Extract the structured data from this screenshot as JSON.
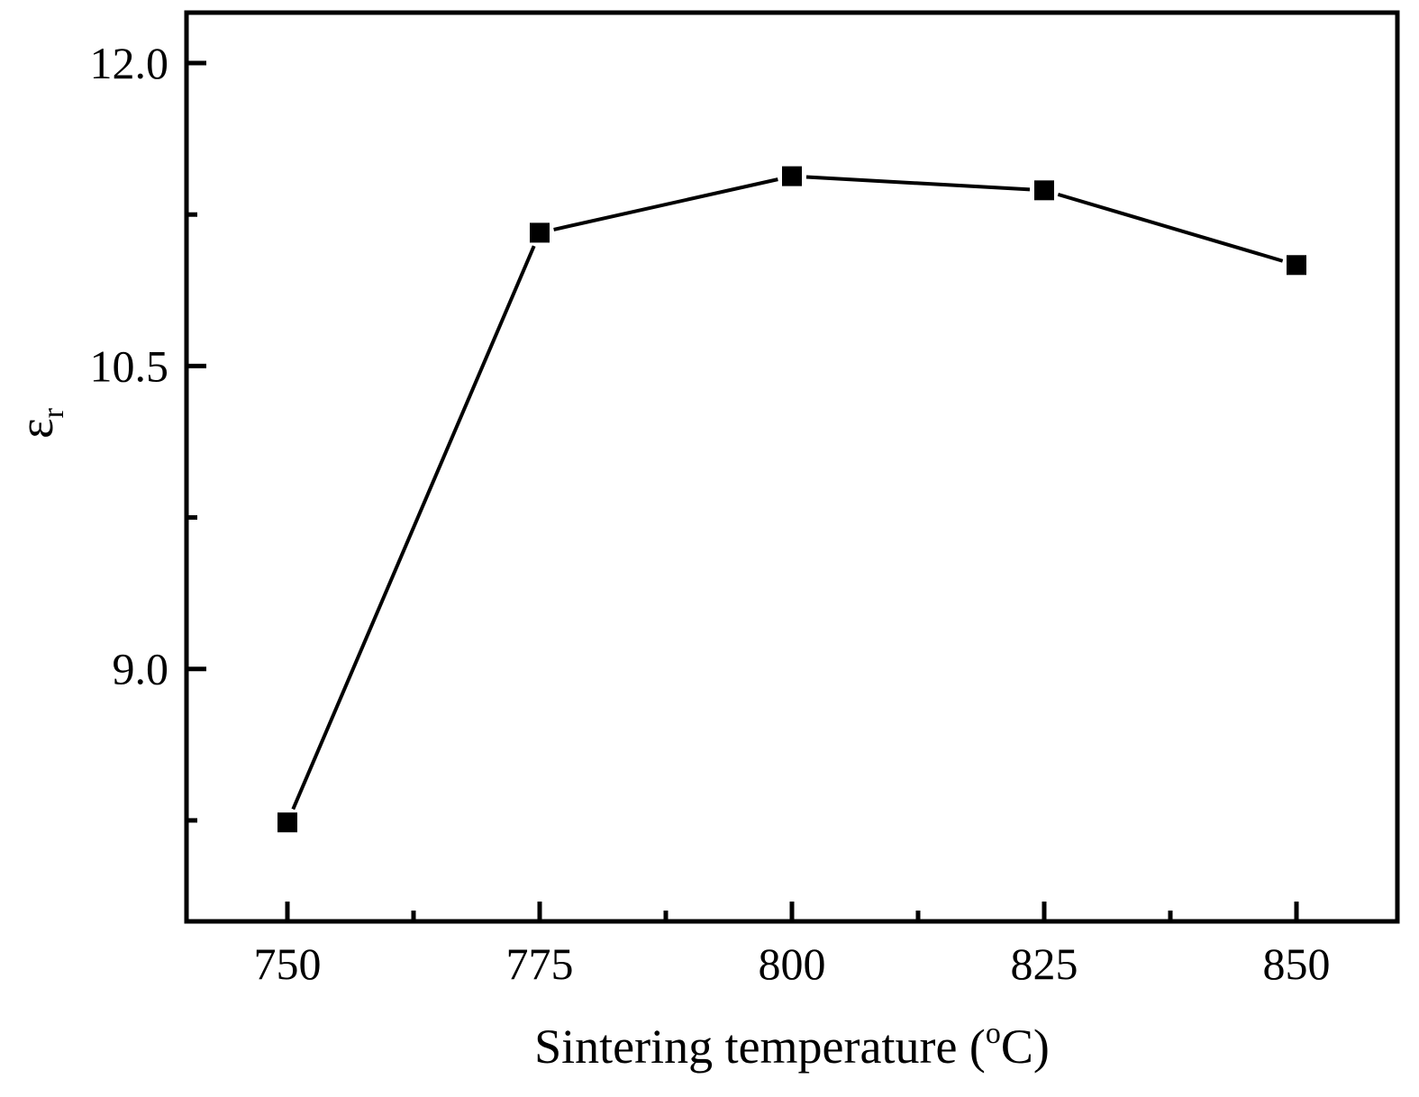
{
  "chart_data": {
    "type": "line",
    "title": "",
    "xlabel": "Sintering temperature (",
    "xlabel_sup": "o",
    "xlabel_end": "C)",
    "ylabel": "ε",
    "ylabel_sub": "r",
    "x": [
      750,
      775,
      800,
      825,
      850
    ],
    "series": [
      {
        "name": "εr",
        "values": [
          8.24,
          11.16,
          11.44,
          11.37,
          11.0
        ],
        "marker": "square",
        "color": "#000000"
      }
    ],
    "xlim": [
      740,
      860
    ],
    "ylim": [
      7.75,
      12.25
    ],
    "xticks": [
      750,
      775,
      800,
      825,
      850
    ],
    "xtick_labels": [
      "750",
      "775",
      "800",
      "825",
      "850"
    ],
    "xminor": [
      762.5,
      787.5,
      812.5,
      837.5
    ],
    "yticks": [
      9.0,
      10.5,
      12.0
    ],
    "ytick_labels": [
      "9.0",
      "10.5",
      "12.0"
    ],
    "yminor": [
      8.25,
      9.75,
      11.25
    ],
    "grid": false,
    "legend": "none"
  }
}
